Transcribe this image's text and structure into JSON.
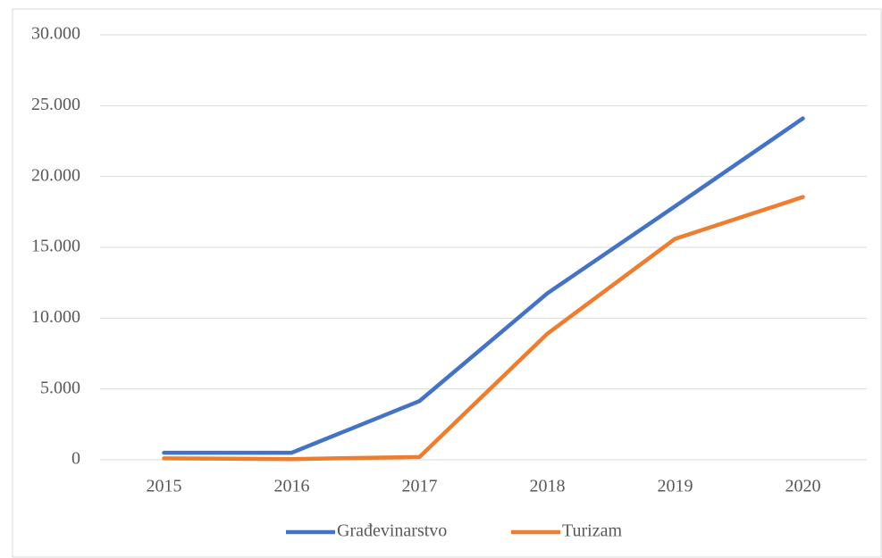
{
  "chart_data": {
    "type": "line",
    "x": [
      "2015",
      "2016",
      "2017",
      "2018",
      "2019",
      "2020"
    ],
    "series": [
      {
        "name": "Građevinarstvo",
        "color": "#4472c4",
        "values": [
          500,
          500,
          4150,
          11750,
          17900,
          24100
        ]
      },
      {
        "name": "Turizam",
        "color": "#ed7d31",
        "values": [
          100,
          50,
          200,
          8900,
          15600,
          18550
        ]
      }
    ],
    "ylim": [
      0,
      30000
    ],
    "yticks": [
      0,
      {
        "value": 5000,
        "label": "5.000"
      },
      {
        "value": 10000,
        "label": "10.000"
      },
      {
        "value": 15000,
        "label": "15.000"
      },
      {
        "value": 20000,
        "label": "20.000"
      },
      {
        "value": 25000,
        "label": "25.000"
      },
      {
        "value": 30000,
        "label": "30.000"
      }
    ],
    "grid": true,
    "legend": "bottom"
  }
}
